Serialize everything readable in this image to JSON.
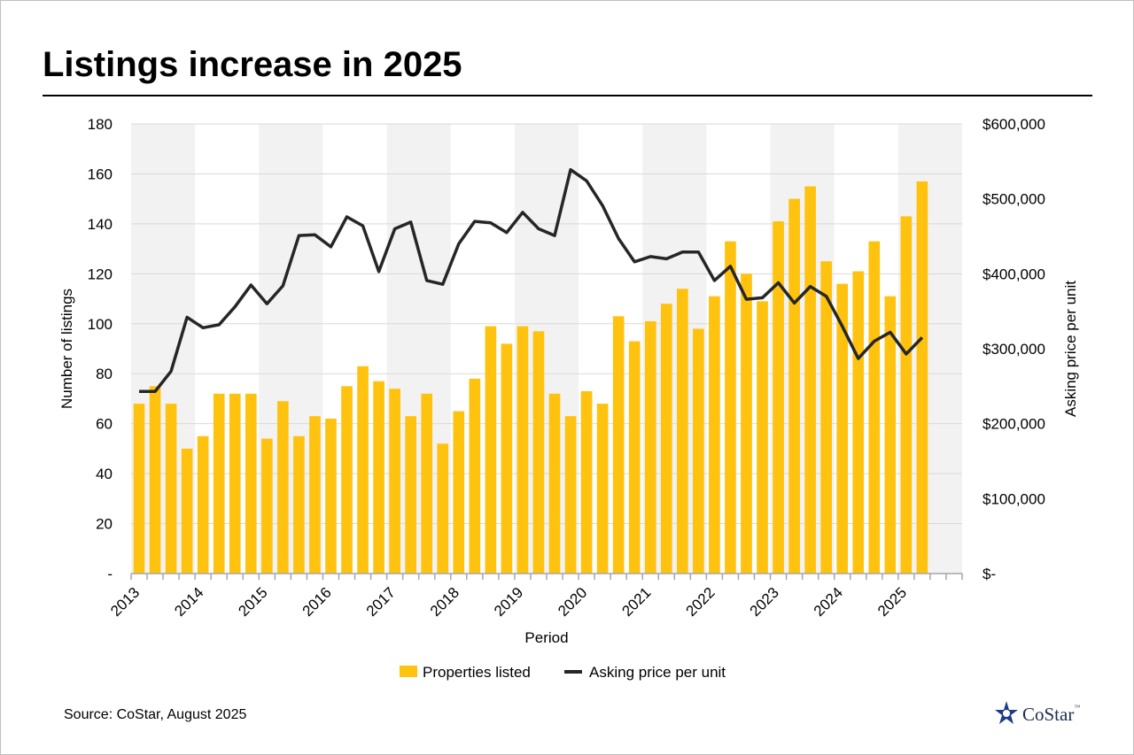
{
  "title": "Listings increase in 2025",
  "source": "Source: CoStar, August 2025",
  "logo": {
    "text": "CoStar",
    "tm": "™"
  },
  "colors": {
    "bar": "#FFC20E",
    "line": "#262626",
    "band": "#F2F2F2",
    "grid": "#D9D9D9",
    "axis": "#A6A6A6"
  },
  "chart_data": {
    "type": "bar",
    "xlabel": "Period",
    "ylabel": "Number of listings",
    "y2label": "Asking price per unit",
    "ylim": [
      0,
      180
    ],
    "y2lim": [
      0,
      600000
    ],
    "yticks": [
      "-",
      "20",
      "40",
      "60",
      "80",
      "100",
      "120",
      "140",
      "160",
      "180"
    ],
    "y2ticks": [
      "$-",
      "$100,000",
      "$200,000",
      "$300,000",
      "$400,000",
      "$500,000",
      "$600,000"
    ],
    "year_labels": [
      "2013",
      "2014",
      "2015",
      "2016",
      "2017",
      "2018",
      "2019",
      "2020",
      "2021",
      "2022",
      "2023",
      "2024",
      "2025"
    ],
    "shaded_years": [
      "2013",
      "2015",
      "2017",
      "2019",
      "2021",
      "2023",
      "2025"
    ],
    "periods_per_year": 4,
    "grid": true,
    "legend_position": "bottom",
    "legend": [
      "Properties listed",
      "Asking price per unit"
    ],
    "series": [
      {
        "name": "Properties listed",
        "type": "bar",
        "values": [
          68,
          75,
          68,
          50,
          55,
          72,
          72,
          72,
          54,
          69,
          55,
          63,
          62,
          75,
          83,
          77,
          74,
          63,
          72,
          52,
          65,
          78,
          99,
          92,
          99,
          97,
          72,
          63,
          73,
          68,
          103,
          93,
          101,
          108,
          114,
          98,
          111,
          133,
          120,
          109,
          141,
          150,
          155,
          125,
          116,
          121,
          133,
          111,
          143,
          157
        ]
      },
      {
        "name": "Asking price per unit",
        "type": "line",
        "axis": "right",
        "values": [
          243000,
          243000,
          270000,
          342000,
          328000,
          332000,
          356000,
          385000,
          360000,
          384000,
          451000,
          452000,
          436000,
          476000,
          464000,
          403000,
          460000,
          469000,
          391000,
          386000,
          440000,
          470000,
          468000,
          455000,
          482000,
          460000,
          451000,
          539000,
          524000,
          491000,
          447000,
          416000,
          423000,
          420000,
          429000,
          429000,
          391000,
          410000,
          366000,
          368000,
          388000,
          361000,
          383000,
          370000,
          330000,
          287000,
          310000,
          322000,
          293000,
          315000
        ]
      }
    ]
  }
}
